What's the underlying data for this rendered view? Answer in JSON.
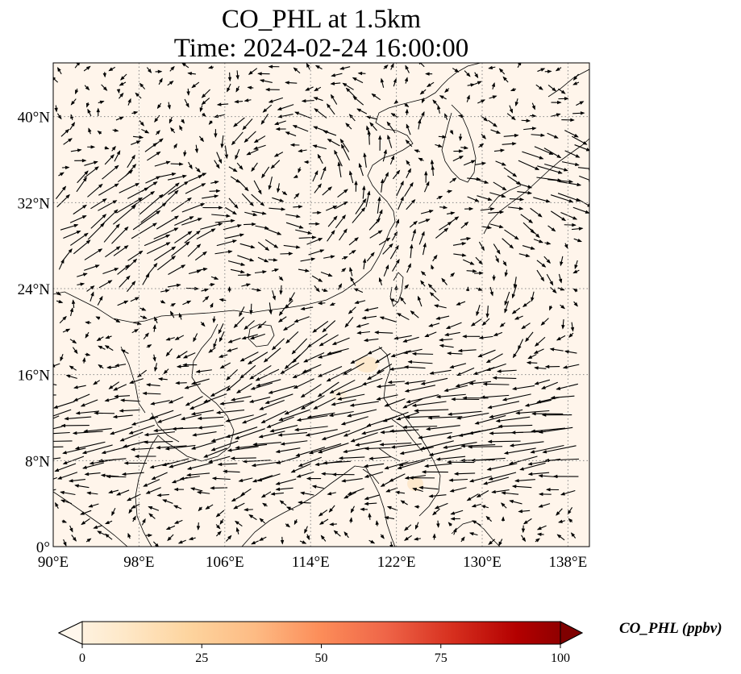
{
  "figure": {
    "title_line1": "CO_PHL at 1.5km",
    "title_line2": "Time: 2024-02-24 16:00:00"
  },
  "map": {
    "lon_range": [
      90,
      140
    ],
    "lat_range": [
      0,
      45
    ],
    "lon_ticks": [
      90,
      98,
      106,
      114,
      122,
      130,
      138
    ],
    "lat_ticks": [
      0,
      8,
      16,
      24,
      32,
      40
    ],
    "lon_tick_labels": [
      "90°E",
      "98°E",
      "106°E",
      "114°E",
      "122°E",
      "130°E",
      "138°E"
    ],
    "lat_tick_labels": [
      "0°",
      "8°N",
      "16°N",
      "24°N",
      "32°N",
      "40°N"
    ],
    "gridlines": "dotted",
    "background_color": "#fff5eb",
    "arrow_color": "#000000",
    "coastline_color": "#000000"
  },
  "colorbar": {
    "label": "CO_PHL (ppbv)",
    "ticks": [
      0,
      25,
      50,
      75,
      100
    ],
    "tick_labels": [
      "0",
      "25",
      "50",
      "75",
      "100"
    ],
    "colormap": "OrRd",
    "extend": "both",
    "colors": [
      "#fff7ec",
      "#fee8c8",
      "#fdd49e",
      "#fdbb84",
      "#fc8d59",
      "#ef6548",
      "#d7301f",
      "#b30000",
      "#7f0000"
    ]
  },
  "chart_data": {
    "type": "heatmap",
    "title": "CO_PHL at 1.5km",
    "subtitle": "Time: 2024-02-24 16:00:00",
    "variable": "CO_PHL (ppbv)",
    "value_range": [
      0,
      100
    ],
    "field_summary": "near-zero concentrations across domain (~0-3 ppbv), faint enhancements near 118°E 17°N and 126°E 6°N",
    "overlay": "wind vectors (quiver)"
  }
}
